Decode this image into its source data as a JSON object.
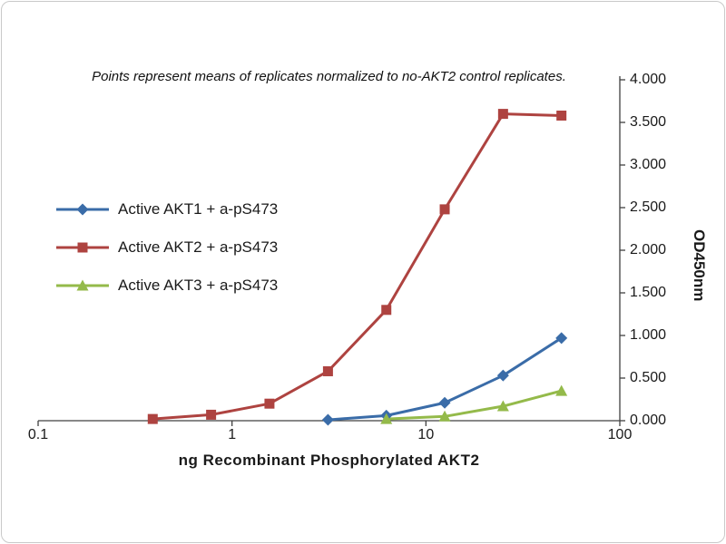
{
  "frame": {
    "background_color": "#ffffff",
    "border_color": "#c9c9c9"
  },
  "chart_data": {
    "type": "line",
    "title": "Points represent means of replicates normalized to no-AKT2 control replicates.",
    "xlabel": "ng Recombinant  Phosphorylated  AKT2",
    "ylabel": "OD450nm",
    "x_scale": "log",
    "xlim": [
      0.1,
      100
    ],
    "ylim": [
      0,
      4
    ],
    "grid": false,
    "legend_position": "middle-left",
    "x_ticks": [
      0.1,
      1,
      10,
      100
    ],
    "x_tick_labels": [
      "0.1",
      "1",
      "10",
      "100"
    ],
    "y_ticks": [
      0,
      0.5,
      1,
      1.5,
      2,
      2.5,
      3,
      3.5,
      4
    ],
    "y_tick_labels": [
      "0.000",
      "0.500",
      "1.000",
      "1.500",
      "2.000",
      "2.500",
      "3.000",
      "3.500",
      "4.000"
    ],
    "axis_color": "#404040",
    "series": [
      {
        "name": "Active AKT1 + a-pS473",
        "color": "#3A6CA8",
        "marker": "diamond",
        "x": [
          3.125,
          6.25,
          12.5,
          25,
          50
        ],
        "y": [
          0.01,
          0.06,
          0.21,
          0.53,
          0.97
        ]
      },
      {
        "name": "Active AKT2 + a-pS473",
        "color": "#AE4340",
        "marker": "square",
        "x": [
          0.39,
          0.78,
          1.56,
          3.125,
          6.25,
          12.5,
          25,
          50
        ],
        "y": [
          0.02,
          0.07,
          0.2,
          0.58,
          1.3,
          2.48,
          3.6,
          3.58
        ]
      },
      {
        "name": "Active AKT3 + a-pS473",
        "color": "#94BA4A",
        "marker": "triangle",
        "x": [
          6.25,
          12.5,
          25,
          50
        ],
        "y": [
          0.02,
          0.05,
          0.17,
          0.35
        ]
      }
    ]
  }
}
